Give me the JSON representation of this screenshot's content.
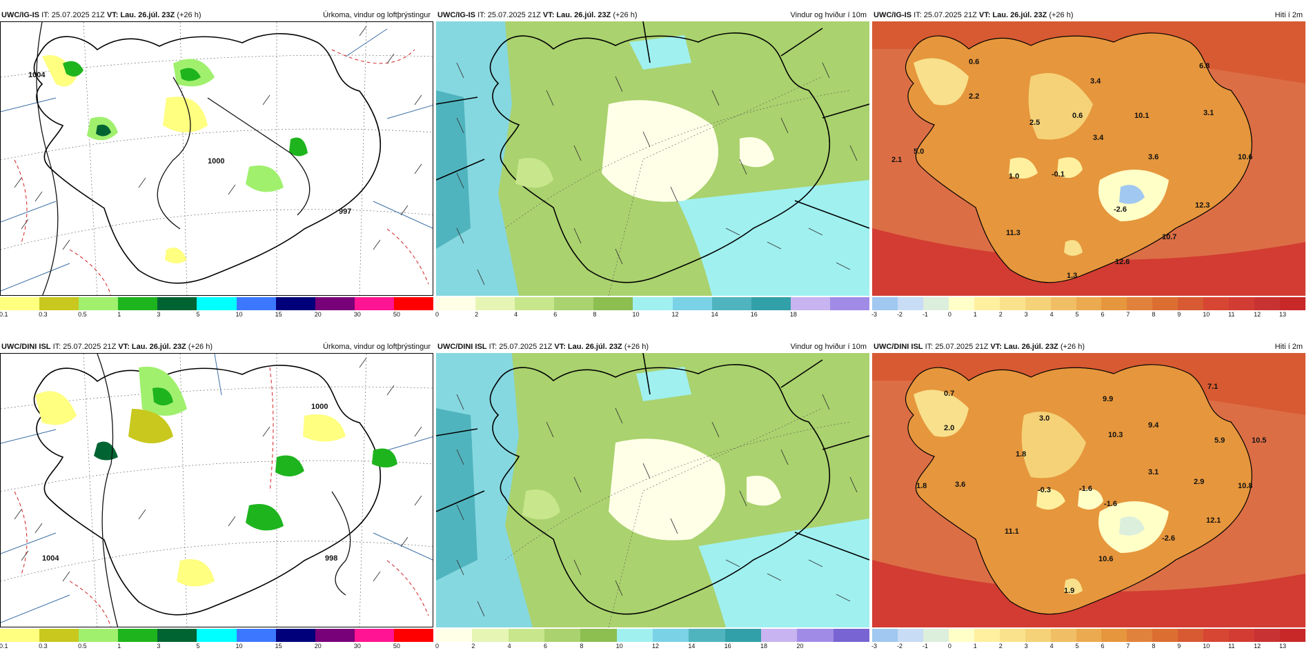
{
  "rows": [
    {
      "model": "UWC/IG-IS",
      "panels": [
        {
          "left": "IT: 25.07.2025 21Z",
          "vt_label": "VT:",
          "vt_value": "Lau. 26.júl. 23Z",
          "lead": "(+26 h)",
          "right": "Úrkoma, vindur og loftþrýstingur",
          "pressure_labels": [
            "1004",
            "1000",
            "997"
          ]
        },
        {
          "left": "IT: 25.07.2025 21Z",
          "vt_label": "VT:",
          "vt_value": "Lau. 26.júl. 23Z",
          "lead": "(+26 h)",
          "right": "Vindur og hviður í 10m"
        },
        {
          "left": "IT: 25.07.2025 21Z",
          "vt_label": "VT:",
          "vt_value": "Lau. 26.júl. 23Z",
          "lead": "(+26 h)",
          "right": "Hiti í 2m",
          "temps": [
            "0.6",
            "2.2",
            "2.5",
            "5.0",
            "2.1",
            "1.0",
            "-0.1",
            "0.6",
            "3.4",
            "3.4",
            "10.1",
            "3.1",
            "6.8",
            "3.6",
            "10.6",
            "-2.6",
            "12.3",
            "10.7",
            "11.3",
            "12.6",
            "1.3"
          ]
        }
      ]
    },
    {
      "model": "UWC/DINI ISL",
      "panels": [
        {
          "left": "IT: 25.07.2025 21Z",
          "vt_label": "VT:",
          "vt_value": "Lau. 26.júl. 23Z",
          "lead": "(+26 h)",
          "right": "Úrkoma, vindur og loftþrýstingur",
          "pressure_labels": [
            "1000",
            "1004",
            "998"
          ]
        },
        {
          "left": "IT: 25.07.2025 21Z",
          "vt_label": "VT:",
          "vt_value": "Lau. 26.júl. 23Z",
          "lead": "(+26 h)",
          "right": "Vindur og hviður í 10m"
        },
        {
          "left": "IT: 25.07.2025 21Z",
          "vt_label": "VT:",
          "vt_value": "Lau. 26.júl. 23Z",
          "lead": "(+26 h)",
          "right": "Hiti í 2m",
          "temps": [
            "0.7",
            "2.0",
            "1.8",
            "3.0",
            "9.9",
            "10.3",
            "9.4",
            "7.1",
            "5.9",
            "10.5",
            "1.8",
            "3.6",
            "-0.3",
            "-1.6",
            "3.1",
            "-1.6",
            "2.9",
            "10.8",
            "12.1",
            "11.1",
            "-2.6",
            "10.6",
            "1.9"
          ]
        }
      ]
    }
  ],
  "legends": {
    "precip": {
      "labels": [
        "0.1",
        "0.3",
        "0.5",
        "1",
        "3",
        "5",
        "10",
        "15",
        "20",
        "30",
        "50"
      ],
      "colors": [
        "#ffff80",
        "#c8c81e",
        "#a0f06e",
        "#1eb41e",
        "#006432",
        "#00ffff",
        "#3c78ff",
        "#00007a",
        "#780078",
        "#ff1493",
        "#ff0000"
      ]
    },
    "wind_top": {
      "labels": [
        "0",
        "2",
        "4",
        "6",
        "8",
        "10",
        "12",
        "14",
        "16",
        "18"
      ],
      "colors": [
        "#ffffe8",
        "#e6f5b4",
        "#c8e68c",
        "#aad26e",
        "#8cbe50",
        "#a0f0f0",
        "#7ad2e6",
        "#50b4be",
        "#32a0a8",
        "#c8b4f0",
        "#a08ce6"
      ]
    },
    "wind_bottom": {
      "labels": [
        "0",
        "2",
        "4",
        "6",
        "8",
        "10",
        "12",
        "14",
        "16",
        "18",
        "20"
      ],
      "colors": [
        "#ffffe8",
        "#e6f5b4",
        "#c8e68c",
        "#aad26e",
        "#8cbe50",
        "#a0f0f0",
        "#7ad2e6",
        "#50b4be",
        "#32a0a8",
        "#c8b4f0",
        "#a08ce6",
        "#7864d2"
      ]
    },
    "temp": {
      "labels": [
        "-3",
        "-2",
        "-1",
        "0",
        "1",
        "2",
        "3",
        "4",
        "5",
        "6",
        "7",
        "8",
        "9",
        "10",
        "11",
        "12",
        "13"
      ],
      "colors": [
        "#a0c8f0",
        "#c8dcf5",
        "#dceedc",
        "#ffffc8",
        "#fff0a0",
        "#fae28c",
        "#f5d278",
        "#f0be64",
        "#ebaa50",
        "#e6963c",
        "#e1823c",
        "#dc6e32",
        "#d75a32",
        "#d74632",
        "#d23c32",
        "#c83232",
        "#c82828"
      ]
    }
  },
  "colors": {
    "land_precip": "#fbe8d8",
    "sea_wind": "#86d8e0",
    "land_wind": "#cde6a0",
    "temp_sea": "#dc6e46",
    "temp_land": "#e6963c",
    "temp_high": "#f8e08c"
  }
}
